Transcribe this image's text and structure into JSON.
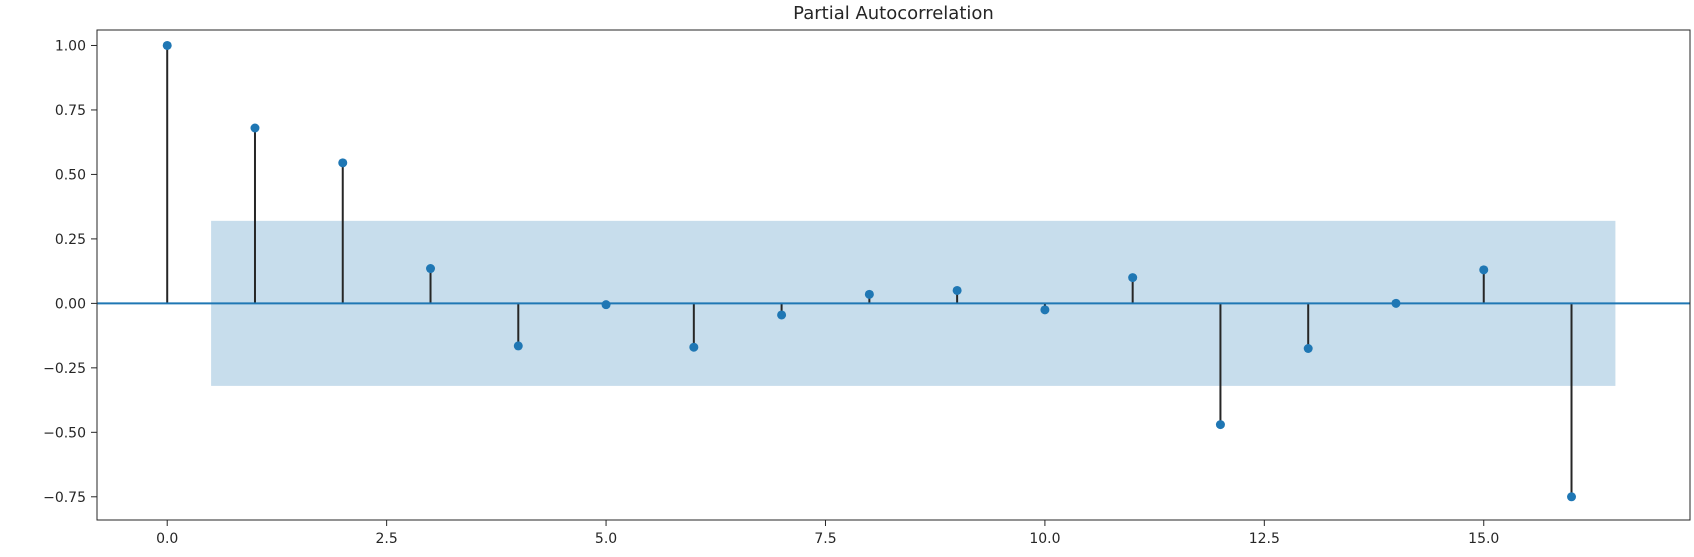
{
  "chart_data": {
    "type": "stem",
    "title": "Partial Autocorrelation",
    "xlabel": "",
    "ylabel": "",
    "xlim": [
      -0.8,
      17.35
    ],
    "ylim": [
      -0.84,
      1.06
    ],
    "xticks": [
      0,
      2.5,
      5,
      7.5,
      10,
      12.5,
      15
    ],
    "xtick_labels": [
      "0.0",
      "2.5",
      "5.0",
      "7.5",
      "10.0",
      "12.5",
      "15.0"
    ],
    "yticks": [
      1,
      0.75,
      0.5,
      0.25,
      0,
      -0.25,
      -0.5,
      -0.75
    ],
    "ytick_labels": [
      "1.00",
      "0.75",
      "0.50",
      "0.25",
      "0.00",
      "−0.25",
      "−0.50",
      "−0.75"
    ],
    "x": [
      0,
      1,
      2,
      3,
      4,
      5,
      6,
      7,
      8,
      9,
      10,
      11,
      12,
      13,
      14,
      15,
      16
    ],
    "values": [
      1.0,
      0.68,
      0.545,
      0.135,
      -0.165,
      -0.005,
      -0.17,
      -0.045,
      0.035,
      0.05,
      -0.025,
      0.1,
      -0.47,
      -0.175,
      0.0,
      0.13,
      -0.75
    ],
    "confidence_band": {
      "x_range": [
        0.5,
        16.5
      ],
      "lower": -0.32,
      "upper": 0.32
    },
    "grid": false,
    "colors": {
      "marker": "#1f77b4",
      "stem": "#262626",
      "baseline": "#1f77b4",
      "band": "#1f77b4",
      "axis": "#262626"
    }
  }
}
